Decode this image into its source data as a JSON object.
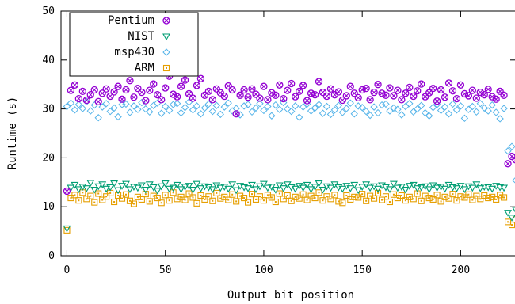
{
  "chart_data": {
    "type": "scatter",
    "xlabel": "Output bit position",
    "ylabel": "Runtime (s)",
    "xlim": [
      -3,
      228
    ],
    "ylim": [
      0,
      50
    ],
    "xticks": [
      0,
      50,
      100,
      150,
      200
    ],
    "yticks": [
      0,
      10,
      20,
      30,
      40,
      50
    ],
    "legend_position": "top-left",
    "series": [
      {
        "name": "Pentium",
        "color": "#9400d3",
        "marker": "circle-x",
        "x": [
          0,
          2,
          4,
          6,
          8,
          10,
          12,
          14,
          16,
          18,
          20,
          22,
          24,
          26,
          28,
          30,
          32,
          34,
          36,
          38,
          40,
          42,
          44,
          46,
          48,
          50,
          52,
          54,
          56,
          58,
          60,
          62,
          64,
          66,
          68,
          70,
          72,
          74,
          76,
          78,
          80,
          82,
          84,
          86,
          88,
          90,
          92,
          94,
          96,
          98,
          100,
          102,
          104,
          106,
          108,
          110,
          112,
          114,
          116,
          118,
          120,
          122,
          124,
          126,
          128,
          130,
          132,
          134,
          136,
          138,
          140,
          142,
          144,
          146,
          148,
          150,
          152,
          154,
          156,
          158,
          160,
          162,
          164,
          166,
          168,
          170,
          172,
          174,
          176,
          178,
          180,
          182,
          184,
          186,
          188,
          190,
          192,
          194,
          196,
          198,
          200,
          202,
          204,
          206,
          208,
          210,
          212,
          214,
          216,
          218,
          220,
          222,
          224,
          226,
          228
        ],
        "y": [
          13.2,
          33.8,
          34.9,
          32.1,
          33.6,
          31.8,
          32.9,
          33.9,
          31.5,
          33.2,
          34.1,
          32.6,
          33.5,
          34.6,
          32.0,
          33.9,
          35.8,
          32.4,
          34.2,
          33.4,
          31.7,
          33.8,
          35.1,
          32.9,
          31.9,
          34.3,
          36.7,
          33.0,
          32.5,
          34.6,
          35.9,
          33.1,
          32.2,
          34.8,
          36.2,
          32.8,
          33.6,
          31.9,
          34.1,
          33.3,
          32.6,
          34.7,
          33.9,
          29.0,
          32.8,
          33.9,
          32.4,
          34.1,
          33.0,
          32.2,
          34.6,
          31.9,
          33.3,
          32.8,
          34.9,
          32.1,
          33.8,
          35.2,
          32.5,
          33.6,
          34.8,
          31.7,
          33.2,
          32.9,
          35.6,
          33.4,
          32.6,
          34.1,
          32.9,
          33.5,
          31.8,
          32.7,
          34.6,
          33.2,
          32.3,
          33.9,
          34.2,
          31.9,
          33.4,
          35.0,
          33.2,
          32.8,
          34.3,
          32.7,
          33.8,
          31.9,
          33.2,
          34.4,
          32.6,
          33.7,
          35.1,
          32.5,
          33.3,
          34.2,
          31.6,
          33.9,
          32.4,
          35.3,
          33.7,
          32.1,
          34.9,
          33.1,
          32.7,
          33.8,
          32.2,
          33.4,
          32.9,
          34.0,
          32.5,
          32.0,
          33.6,
          32.8,
          18.8,
          20.3,
          19.6
        ]
      },
      {
        "name": "NIST",
        "color": "#009e73",
        "marker": "triangle-down",
        "x": [
          0,
          2,
          4,
          6,
          8,
          10,
          12,
          14,
          16,
          18,
          20,
          22,
          24,
          26,
          28,
          30,
          32,
          34,
          36,
          38,
          40,
          42,
          44,
          46,
          48,
          50,
          52,
          54,
          56,
          58,
          60,
          62,
          64,
          66,
          68,
          70,
          72,
          74,
          76,
          78,
          80,
          82,
          84,
          86,
          88,
          90,
          92,
          94,
          96,
          98,
          100,
          102,
          104,
          106,
          108,
          110,
          112,
          114,
          116,
          118,
          120,
          122,
          124,
          126,
          128,
          130,
          132,
          134,
          136,
          138,
          140,
          142,
          144,
          146,
          148,
          150,
          152,
          154,
          156,
          158,
          160,
          162,
          164,
          166,
          168,
          170,
          172,
          174,
          176,
          178,
          180,
          182,
          184,
          186,
          188,
          190,
          192,
          194,
          196,
          198,
          200,
          202,
          204,
          206,
          208,
          210,
          212,
          214,
          216,
          218,
          220,
          222,
          224,
          226,
          228
        ],
        "y": [
          5.6,
          13.9,
          14.5,
          13.6,
          14.1,
          13.8,
          14.9,
          13.5,
          14.2,
          14.6,
          13.7,
          14.0,
          14.8,
          13.4,
          14.3,
          14.7,
          13.6,
          14.1,
          13.9,
          14.4,
          13.5,
          14.6,
          14.0,
          13.3,
          14.2,
          14.8,
          13.7,
          13.9,
          14.5,
          13.6,
          14.1,
          14.3,
          13.5,
          14.7,
          13.8,
          14.2,
          14.0,
          13.6,
          14.4,
          13.9,
          14.1,
          13.7,
          14.6,
          13.4,
          14.3,
          14.0,
          13.8,
          14.5,
          13.6,
          14.2,
          14.7,
          13.9,
          14.1,
          13.5,
          14.4,
          13.8,
          14.6,
          14.0,
          13.7,
          14.3,
          13.9,
          14.5,
          13.6,
          14.1,
          14.8,
          13.5,
          14.2,
          13.9,
          14.6,
          14.0,
          13.7,
          14.3,
          13.8,
          14.5,
          13.4,
          14.1,
          14.6,
          13.9,
          14.2,
          13.7,
          14.4,
          14.0,
          13.6,
          14.7,
          13.9,
          14.1,
          13.5,
          14.3,
          14.5,
          13.8,
          14.0,
          14.2,
          13.6,
          14.4,
          13.9,
          14.1,
          13.7,
          14.5,
          14.0,
          13.8,
          14.3,
          13.6,
          14.2,
          13.9,
          14.6,
          13.8,
          14.1,
          14.0,
          13.7,
          14.3,
          14.0,
          13.9,
          8.8,
          7.8,
          9.4
        ]
      },
      {
        "name": "msp430",
        "color": "#56b4e9",
        "marker": "diamond",
        "x": [
          0,
          2,
          4,
          6,
          8,
          10,
          12,
          14,
          16,
          18,
          20,
          22,
          24,
          26,
          28,
          30,
          32,
          34,
          36,
          38,
          40,
          42,
          44,
          46,
          48,
          50,
          52,
          54,
          56,
          58,
          60,
          62,
          64,
          66,
          68,
          70,
          72,
          74,
          76,
          78,
          80,
          82,
          84,
          86,
          88,
          90,
          92,
          94,
          96,
          98,
          100,
          102,
          104,
          106,
          108,
          110,
          112,
          114,
          116,
          118,
          120,
          122,
          124,
          126,
          128,
          130,
          132,
          134,
          136,
          138,
          140,
          142,
          144,
          146,
          148,
          150,
          152,
          154,
          156,
          158,
          160,
          162,
          164,
          166,
          168,
          170,
          172,
          174,
          176,
          178,
          180,
          182,
          184,
          186,
          188,
          190,
          192,
          194,
          196,
          198,
          200,
          202,
          204,
          206,
          208,
          210,
          212,
          214,
          216,
          218,
          220,
          222,
          224,
          226,
          228
        ],
        "y": [
          30.5,
          31.2,
          29.8,
          30.9,
          30.1,
          31.5,
          29.6,
          30.8,
          28.2,
          30.4,
          31.1,
          29.5,
          30.2,
          28.4,
          30.9,
          31.0,
          29.3,
          30.6,
          29.9,
          31.3,
          30.0,
          29.4,
          30.7,
          31.2,
          29.1,
          30.5,
          29.7,
          30.9,
          31.1,
          29.2,
          30.3,
          31.4,
          29.8,
          30.6,
          29.0,
          30.2,
          31.0,
          29.5,
          30.7,
          28.9,
          30.4,
          31.2,
          29.6,
          30.1,
          28.8,
          30.6,
          30.9,
          29.4,
          30.2,
          31.1,
          29.7,
          30.5,
          28.6,
          30.8,
          29.9,
          31.3,
          30.0,
          29.5,
          30.6,
          28.3,
          30.4,
          31.0,
          29.6,
          30.2,
          30.9,
          29.1,
          30.5,
          28.9,
          29.8,
          30.7,
          29.3,
          30.1,
          31.2,
          29.0,
          30.6,
          30.3,
          29.5,
          28.7,
          30.4,
          29.2,
          30.8,
          31.0,
          29.6,
          30.2,
          29.9,
          28.8,
          30.5,
          31.1,
          29.4,
          30.0,
          30.7,
          29.2,
          28.6,
          30.3,
          30.9,
          29.7,
          30.4,
          29.0,
          31.0,
          29.8,
          30.6,
          28.1,
          29.9,
          30.5,
          29.4,
          31.1,
          30.2,
          29.6,
          30.8,
          29.3,
          28.0,
          30.1,
          21.4,
          22.3,
          15.4
        ]
      },
      {
        "name": "ARM",
        "color": "#e69f00",
        "marker": "square-dot",
        "x": [
          0,
          2,
          4,
          6,
          8,
          10,
          12,
          14,
          16,
          18,
          20,
          22,
          24,
          26,
          28,
          30,
          32,
          34,
          36,
          38,
          40,
          42,
          44,
          46,
          48,
          50,
          52,
          54,
          56,
          58,
          60,
          62,
          64,
          66,
          68,
          70,
          72,
          74,
          76,
          78,
          80,
          82,
          84,
          86,
          88,
          90,
          92,
          94,
          96,
          98,
          100,
          102,
          104,
          106,
          108,
          110,
          112,
          114,
          116,
          118,
          120,
          122,
          124,
          126,
          128,
          130,
          132,
          134,
          136,
          138,
          140,
          142,
          144,
          146,
          148,
          150,
          152,
          154,
          156,
          158,
          160,
          162,
          164,
          166,
          168,
          170,
          172,
          174,
          176,
          178,
          180,
          182,
          184,
          186,
          188,
          190,
          192,
          194,
          196,
          198,
          200,
          202,
          204,
          206,
          208,
          210,
          212,
          214,
          216,
          218,
          220,
          222,
          224,
          226,
          228
        ],
        "y": [
          5.2,
          11.8,
          12.4,
          11.3,
          12.9,
          11.6,
          12.2,
          10.9,
          12.7,
          11.4,
          12.1,
          12.8,
          11.0,
          12.3,
          11.7,
          12.5,
          11.2,
          10.6,
          12.0,
          11.5,
          12.6,
          11.1,
          12.2,
          11.8,
          10.8,
          12.4,
          11.3,
          12.9,
          11.6,
          12.0,
          11.4,
          12.7,
          11.9,
          10.7,
          12.3,
          11.5,
          12.1,
          11.2,
          12.8,
          11.7,
          12.0,
          11.4,
          12.5,
          11.1,
          12.2,
          11.8,
          10.9,
          12.6,
          11.5,
          12.1,
          11.3,
          12.4,
          11.9,
          11.0,
          12.7,
          11.6,
          12.3,
          11.2,
          12.0,
          11.7,
          12.5,
          11.4,
          12.2,
          11.8,
          12.9,
          11.3,
          12.1,
          11.6,
          12.4,
          11.1,
          10.8,
          12.3,
          11.5,
          12.0,
          11.9,
          12.6,
          11.2,
          12.2,
          11.7,
          12.8,
          11.4,
          12.1,
          11.0,
          12.5,
          11.8,
          12.3,
          11.3,
          12.0,
          11.6,
          12.7,
          11.2,
          12.2,
          11.8,
          11.5,
          12.4,
          11.1,
          12.0,
          11.7,
          12.6,
          11.3,
          12.1,
          11.9,
          12.5,
          11.4,
          12.2,
          11.6,
          12.3,
          11.8,
          12.0,
          11.5,
          12.4,
          11.9,
          6.9,
          6.3,
          7.4
        ]
      }
    ]
  }
}
